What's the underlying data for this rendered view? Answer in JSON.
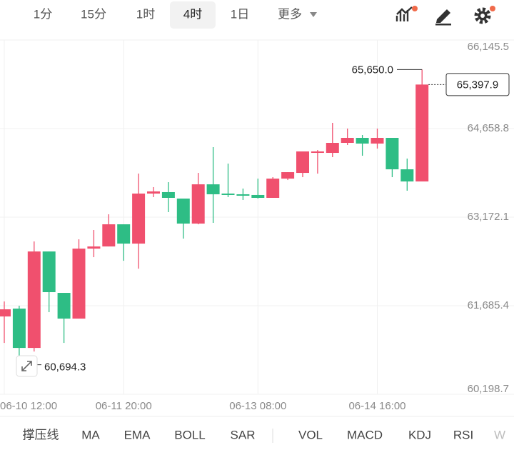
{
  "tabs": [
    "1分",
    "15分",
    "1时",
    "4时",
    "1日",
    "更多"
  ],
  "selected_tab": 3,
  "indicators_main": [
    "撑压线",
    "MA",
    "EMA",
    "BOLL",
    "SAR"
  ],
  "indicators_sub": [
    "VOL",
    "MACD",
    "KDJ",
    "RSI",
    "W"
  ],
  "chart_data": {
    "type": "candlestick",
    "categories": [
      "06-10 12:00",
      null,
      null,
      null,
      null,
      null,
      null,
      null,
      "06-11 20:00",
      null,
      null,
      null,
      null,
      null,
      null,
      null,
      null,
      "06-13 08:00",
      null,
      null,
      null,
      null,
      null,
      null,
      null,
      "06-14 16:00",
      null,
      null,
      null
    ],
    "open": [
      61505,
      61637,
      60977,
      62596,
      61901,
      61469,
      62644,
      62680,
      63052,
      62728,
      63568,
      63592,
      63484,
      63064,
      63723,
      63568,
      63556,
      63544,
      63496,
      63819,
      63915,
      64251,
      64251,
      64419,
      64503,
      64407,
      64503,
      63975,
      63771
    ],
    "high": [
      61757,
      61685,
      62764,
      62596,
      61901,
      62800,
      62956,
      63220,
      63052,
      63903,
      63676,
      63759,
      63484,
      63915,
      64347,
      64071,
      63652,
      63819,
      63843,
      63927,
      64275,
      64299,
      64755,
      64659,
      64551,
      64659,
      64503,
      64155,
      65650.0
    ],
    "low": [
      61061,
      60694.3,
      60917,
      61577,
      61061,
      61469,
      62500,
      62680,
      62440,
      62308,
      63508,
      63256,
      62812,
      63052,
      63076,
      63508,
      63460,
      63484,
      63496,
      63795,
      63843,
      63903,
      64179,
      64383,
      64203,
      64323,
      63843,
      63616,
      63771
    ],
    "close": [
      61625,
      60977,
      62596,
      61913,
      61469,
      62644,
      62680,
      63052,
      62728,
      63568,
      63604,
      63496,
      63064,
      63723,
      63556,
      63544,
      63532,
      63496,
      63819,
      63927,
      64275,
      64275,
      64419,
      64503,
      64407,
      64503,
      63975,
      63771,
      65397.9
    ],
    "up_color": "#f0506e",
    "down_color": "#2ebd85",
    "ylim": [
      60198.7,
      66145.5
    ],
    "yticks": [
      {
        "value": 60198.7,
        "label": "60,198.7"
      },
      {
        "value": 61685.4,
        "label": "61,685.4"
      },
      {
        "value": 63172.1,
        "label": "63,172.1"
      },
      {
        "value": 64658.8,
        "label": "64,658.8"
      },
      {
        "value": 66145.5,
        "label": "66,145.5"
      }
    ],
    "grid": true,
    "high_label": "65,650.0",
    "low_label": "60,694.3",
    "last_label": "65,397.9"
  }
}
